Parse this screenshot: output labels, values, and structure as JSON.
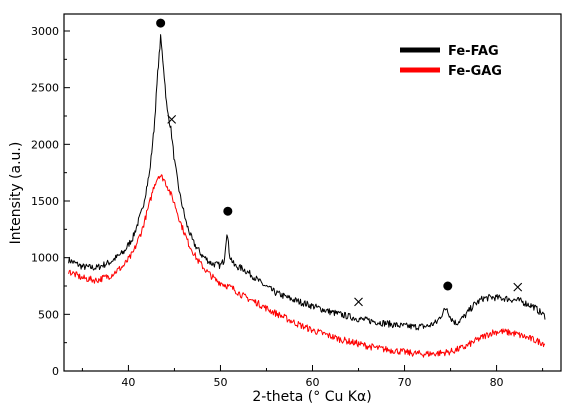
{
  "chart_data": {
    "type": "line",
    "title": "",
    "xlabel": "2-theta (° Cu Kα)",
    "ylabel": "Intensity (a.u.)",
    "xlim": [
      33,
      87
    ],
    "ylim": [
      0,
      3150
    ],
    "x_ticks": [
      "40",
      "50",
      "60",
      "70",
      "80"
    ],
    "y_ticks": [
      "0",
      "500",
      "1000",
      "1500",
      "2000",
      "2500",
      "3000"
    ],
    "grid": false,
    "legend_position": "top-right",
    "series": [
      {
        "name": "Fe-FAG",
        "color": "#000000",
        "points": [
          [
            33.5,
            980
          ],
          [
            35,
            920
          ],
          [
            36.5,
            910
          ],
          [
            38,
            960
          ],
          [
            39.5,
            1050
          ],
          [
            40.5,
            1180
          ],
          [
            41.5,
            1420
          ],
          [
            42.3,
            1750
          ],
          [
            42.8,
            2150
          ],
          [
            43.2,
            2650
          ],
          [
            43.5,
            2940
          ],
          [
            43.8,
            2700
          ],
          [
            44.2,
            2300
          ],
          [
            44.6,
            2150
          ],
          [
            45,
            1850
          ],
          [
            45.6,
            1550
          ],
          [
            46.3,
            1300
          ],
          [
            47,
            1140
          ],
          [
            48,
            1020
          ],
          [
            49,
            950
          ],
          [
            50,
            930
          ],
          [
            50.4,
            980
          ],
          [
            50.7,
            1230
          ],
          [
            51,
            1020
          ],
          [
            51.5,
            930
          ],
          [
            52.5,
            900
          ],
          [
            53.5,
            840
          ],
          [
            54.5,
            770
          ],
          [
            56,
            690
          ],
          [
            57.5,
            640
          ],
          [
            59,
            600
          ],
          [
            60.5,
            560
          ],
          [
            62,
            520
          ],
          [
            63.5,
            490
          ],
          [
            65,
            460
          ],
          [
            66.5,
            440
          ],
          [
            68,
            420
          ],
          [
            69.5,
            400
          ],
          [
            71,
            390
          ],
          [
            72.5,
            395
          ],
          [
            73.5,
            430
          ],
          [
            74.2,
            520
          ],
          [
            74.6,
            560
          ],
          [
            75,
            470
          ],
          [
            75.6,
            420
          ],
          [
            76.5,
            480
          ],
          [
            77.5,
            580
          ],
          [
            78.5,
            640
          ],
          [
            79.5,
            650
          ],
          [
            81,
            640
          ],
          [
            82.5,
            620
          ],
          [
            84,
            570
          ],
          [
            85.3,
            480
          ]
        ]
      },
      {
        "name": "Fe-GAG",
        "color": "#ff0000",
        "points": [
          [
            33.5,
            880
          ],
          [
            35,
            820
          ],
          [
            36.5,
            800
          ],
          [
            38,
            840
          ],
          [
            39.5,
            930
          ],
          [
            40.5,
            1040
          ],
          [
            41.5,
            1250
          ],
          [
            42.3,
            1480
          ],
          [
            42.8,
            1640
          ],
          [
            43.3,
            1730
          ],
          [
            43.8,
            1700
          ],
          [
            44.3,
            1620
          ],
          [
            45,
            1480
          ],
          [
            45.7,
            1300
          ],
          [
            46.5,
            1130
          ],
          [
            47.5,
            980
          ],
          [
            48.5,
            880
          ],
          [
            49.5,
            800
          ],
          [
            50.5,
            760
          ],
          [
            51.5,
            720
          ],
          [
            52.5,
            660
          ],
          [
            54,
            600
          ],
          [
            55.5,
            530
          ],
          [
            57,
            470
          ],
          [
            58.5,
            410
          ],
          [
            60,
            360
          ],
          [
            61.5,
            320
          ],
          [
            63,
            280
          ],
          [
            64.5,
            250
          ],
          [
            66,
            220
          ],
          [
            67.5,
            195
          ],
          [
            69,
            180
          ],
          [
            70.5,
            160
          ],
          [
            72,
            150
          ],
          [
            73.5,
            155
          ],
          [
            75,
            170
          ],
          [
            76.5,
            210
          ],
          [
            78,
            280
          ],
          [
            79.5,
            340
          ],
          [
            80.5,
            350
          ],
          [
            82,
            330
          ],
          [
            83.5,
            290
          ],
          [
            85.3,
            240
          ]
        ]
      }
    ],
    "annotations": [
      {
        "marker": "dot",
        "x": 43.5,
        "y": 3070
      },
      {
        "marker": "dot",
        "x": 50.8,
        "y": 1410
      },
      {
        "marker": "dot",
        "x": 74.7,
        "y": 750
      },
      {
        "marker": "cross",
        "x": 44.7,
        "y": 2220
      },
      {
        "marker": "cross",
        "x": 65.0,
        "y": 610
      },
      {
        "marker": "cross",
        "x": 82.3,
        "y": 740
      }
    ]
  }
}
